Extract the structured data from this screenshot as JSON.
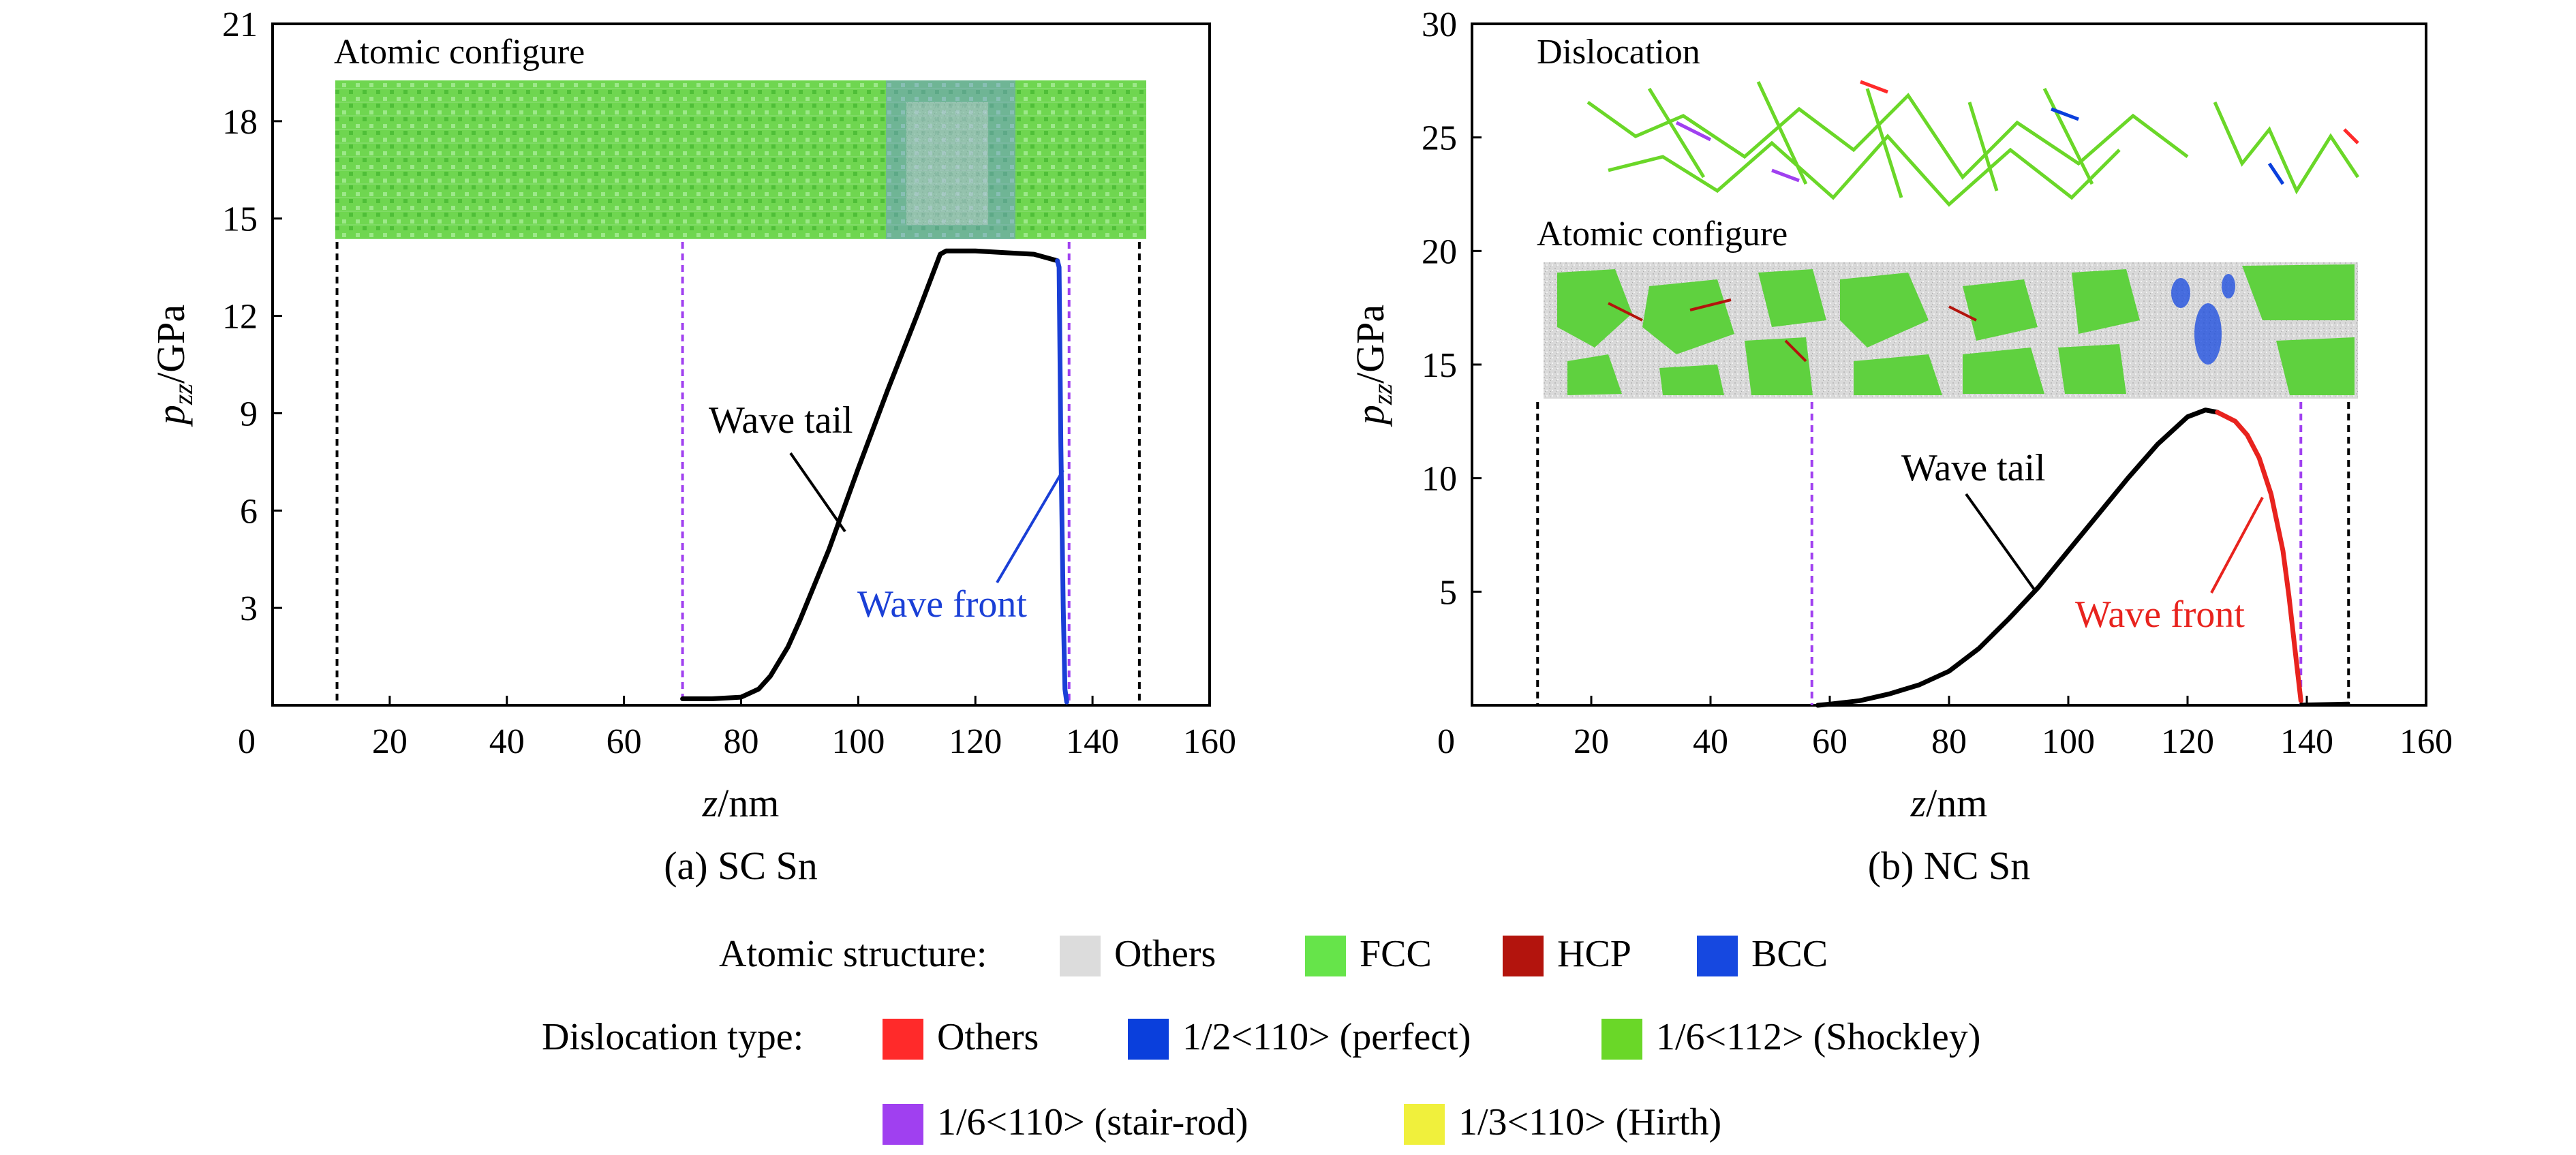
{
  "figure": {
    "panels": [
      {
        "id": "a",
        "caption": "(a) SC Sn",
        "ylabel_var": "p",
        "ylabel_sub": "zz",
        "ylabel_unit": "/GPa",
        "xlabel_var": "z",
        "xlabel_unit": "/nm",
        "inset_labels": [
          "Atomic configure"
        ],
        "annotations": [
          {
            "text": "Wave tail",
            "color": "#000000"
          },
          {
            "text": "Wave front",
            "color": "#1a3fd6"
          }
        ]
      },
      {
        "id": "b",
        "caption": "(b) NC Sn",
        "ylabel_var": "p",
        "ylabel_sub": "zz",
        "ylabel_unit": "/GPa",
        "xlabel_var": "z",
        "xlabel_unit": "/nm",
        "inset_labels": [
          "Dislocation",
          "Atomic configure"
        ],
        "annotations": [
          {
            "text": "Wave tail",
            "color": "#000000"
          },
          {
            "text": "Wave front",
            "color": "#e8231e"
          }
        ]
      }
    ],
    "legend": {
      "atomic_title": "Atomic structure:",
      "atomic_items": [
        {
          "label": "Others",
          "color": "#dcdcdc"
        },
        {
          "label": "FCC",
          "color": "#66e44a"
        },
        {
          "label": "HCP",
          "color": "#b3140d"
        },
        {
          "label": "BCC",
          "color": "#1648e0"
        }
      ],
      "dislocation_title": "Dislocation type:",
      "dislocation_items": [
        {
          "label": "Others",
          "color": "#ff2a2a"
        },
        {
          "label": "1/2<110> (perfect)",
          "color": "#0a3fdc"
        },
        {
          "label": "1/6<112> (Shockley)",
          "color": "#6ad728"
        },
        {
          "label": "1/6<110> (stair-rod)",
          "color": "#a040f0"
        },
        {
          "label": "1/3<110> (Hirth)",
          "color": "#f0f03c"
        }
      ]
    }
  },
  "chart_data": [
    {
      "type": "line",
      "xlim": [
        0,
        160
      ],
      "ylim": [
        0,
        21
      ],
      "x_ticks": [
        0,
        20,
        40,
        60,
        80,
        100,
        120,
        140,
        160
      ],
      "y_ticks": [
        3,
        6,
        9,
        12,
        15,
        18,
        21
      ],
      "vlines": [
        {
          "x": 11,
          "color": "#000000",
          "style": "dashed"
        },
        {
          "x": 70,
          "color": "#a040f0",
          "style": "dashed"
        },
        {
          "x": 136,
          "color": "#a040f0",
          "style": "dashed"
        },
        {
          "x": 148,
          "color": "#000000",
          "style": "dashed"
        }
      ],
      "series": [
        {
          "role": "wave-tail",
          "color": "#000000",
          "x": [
            70,
            75,
            80,
            83,
            85,
            88,
            90,
            95,
            100,
            105,
            110,
            114,
            115,
            117,
            120,
            125,
            130,
            134
          ],
          "y": [
            0.2,
            0.2,
            0.25,
            0.5,
            0.9,
            1.8,
            2.6,
            4.8,
            7.3,
            9.7,
            12.0,
            13.9,
            14.0,
            14.0,
            14.0,
            13.95,
            13.9,
            13.7
          ]
        },
        {
          "role": "wave-front",
          "color": "#1a3fd6",
          "x": [
            134,
            134.3,
            134.6,
            135,
            135.3,
            135.6
          ],
          "y": [
            13.7,
            13.5,
            8.0,
            3.0,
            0.5,
            0.1
          ]
        }
      ]
    },
    {
      "type": "line",
      "xlim": [
        0,
        160
      ],
      "ylim": [
        0,
        30
      ],
      "x_ticks": [
        0,
        20,
        40,
        60,
        80,
        100,
        120,
        140,
        160
      ],
      "y_ticks": [
        5,
        10,
        15,
        20,
        25,
        30
      ],
      "vlines": [
        {
          "x": 11,
          "color": "#000000",
          "style": "dashed"
        },
        {
          "x": 57,
          "color": "#a040f0",
          "style": "dashed"
        },
        {
          "x": 139,
          "color": "#a040f0",
          "style": "dashed"
        },
        {
          "x": 147,
          "color": "#000000",
          "style": "dashed"
        }
      ],
      "series": [
        {
          "role": "wave-tail",
          "color": "#000000",
          "x": [
            58,
            60,
            65,
            70,
            75,
            80,
            85,
            90,
            95,
            100,
            105,
            110,
            115,
            120,
            123,
            125
          ],
          "y": [
            0.0,
            0.05,
            0.2,
            0.5,
            0.9,
            1.5,
            2.5,
            3.8,
            5.2,
            6.8,
            8.4,
            10.0,
            11.5,
            12.7,
            13.0,
            12.9
          ]
        },
        {
          "role": "wave-front",
          "color": "#e8231e",
          "x": [
            125,
            128,
            130,
            132,
            134,
            136,
            137,
            138,
            139
          ],
          "y": [
            12.9,
            12.5,
            11.9,
            10.9,
            9.3,
            6.8,
            4.8,
            2.5,
            0.2
          ]
        },
        {
          "role": "baseline",
          "color": "#000000",
          "x": [
            139,
            147
          ],
          "y": [
            0.05,
            0.1
          ]
        }
      ]
    }
  ]
}
